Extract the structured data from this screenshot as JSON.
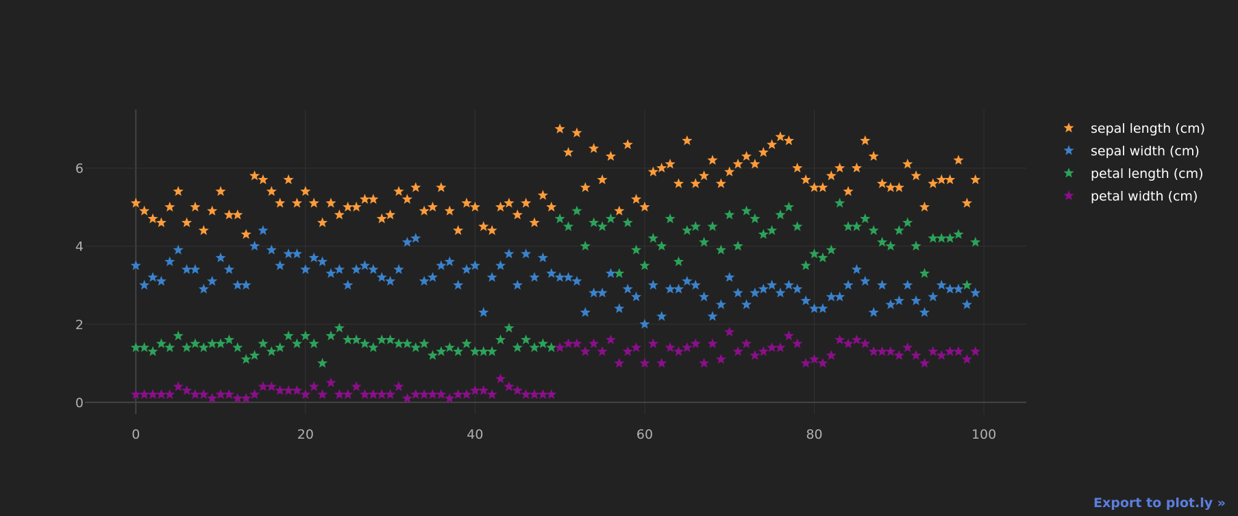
{
  "export_link": "Export to plot.ly »",
  "background": "#222222",
  "chart_data": {
    "type": "scatter",
    "marker": "star",
    "xlim": [
      -6,
      105
    ],
    "ylim": [
      -0.3,
      7.5
    ],
    "x_ticks": [
      0,
      20,
      40,
      60,
      80,
      100
    ],
    "y_ticks": [
      0,
      2,
      4,
      6
    ],
    "grid": true,
    "legend_position": "top-right",
    "series": [
      {
        "name": "sepal length (cm)",
        "color": "#ff9c3a",
        "values": [
          5.1,
          4.9,
          4.7,
          4.6,
          5.0,
          5.4,
          4.6,
          5.0,
          4.4,
          4.9,
          5.4,
          4.8,
          4.8,
          4.3,
          5.8,
          5.7,
          5.4,
          5.1,
          5.7,
          5.1,
          5.4,
          5.1,
          4.6,
          5.1,
          4.8,
          5.0,
          5.0,
          5.2,
          5.2,
          4.7,
          4.8,
          5.4,
          5.2,
          5.5,
          4.9,
          5.0,
          5.5,
          4.9,
          4.4,
          5.1,
          5.0,
          4.5,
          4.4,
          5.0,
          5.1,
          4.8,
          5.1,
          4.6,
          5.3,
          5.0,
          7.0,
          6.4,
          6.9,
          5.5,
          6.5,
          5.7,
          6.3,
          4.9,
          6.6,
          5.2,
          5.0,
          5.9,
          6.0,
          6.1,
          5.6,
          6.7,
          5.6,
          5.8,
          6.2,
          5.6,
          5.9,
          6.1,
          6.3,
          6.1,
          6.4,
          6.6,
          6.8,
          6.7,
          6.0,
          5.7,
          5.5,
          5.5,
          5.8,
          6.0,
          5.4,
          6.0,
          6.7,
          6.3,
          5.6,
          5.5,
          5.5,
          6.1,
          5.8,
          5.0,
          5.6,
          5.7,
          5.7,
          6.2,
          5.1,
          5.7
        ]
      },
      {
        "name": "sepal width (cm)",
        "color": "#3a82cc",
        "values": [
          3.5,
          3.0,
          3.2,
          3.1,
          3.6,
          3.9,
          3.4,
          3.4,
          2.9,
          3.1,
          3.7,
          3.4,
          3.0,
          3.0,
          4.0,
          4.4,
          3.9,
          3.5,
          3.8,
          3.8,
          3.4,
          3.7,
          3.6,
          3.3,
          3.4,
          3.0,
          3.4,
          3.5,
          3.4,
          3.2,
          3.1,
          3.4,
          4.1,
          4.2,
          3.1,
          3.2,
          3.5,
          3.6,
          3.0,
          3.4,
          3.5,
          2.3,
          3.2,
          3.5,
          3.8,
          3.0,
          3.8,
          3.2,
          3.7,
          3.3,
          3.2,
          3.2,
          3.1,
          2.3,
          2.8,
          2.8,
          3.3,
          2.4,
          2.9,
          2.7,
          2.0,
          3.0,
          2.2,
          2.9,
          2.9,
          3.1,
          3.0,
          2.7,
          2.2,
          2.5,
          3.2,
          2.8,
          2.5,
          2.8,
          2.9,
          3.0,
          2.8,
          3.0,
          2.9,
          2.6,
          2.4,
          2.4,
          2.7,
          2.7,
          3.0,
          3.4,
          3.1,
          2.3,
          3.0,
          2.5,
          2.6,
          3.0,
          2.6,
          2.3,
          2.7,
          3.0,
          2.9,
          2.9,
          2.5,
          2.8
        ]
      },
      {
        "name": "petal length (cm)",
        "color": "#2ca35a",
        "values": [
          1.4,
          1.4,
          1.3,
          1.5,
          1.4,
          1.7,
          1.4,
          1.5,
          1.4,
          1.5,
          1.5,
          1.6,
          1.4,
          1.1,
          1.2,
          1.5,
          1.3,
          1.4,
          1.7,
          1.5,
          1.7,
          1.5,
          1.0,
          1.7,
          1.9,
          1.6,
          1.6,
          1.5,
          1.4,
          1.6,
          1.6,
          1.5,
          1.5,
          1.4,
          1.5,
          1.2,
          1.3,
          1.4,
          1.3,
          1.5,
          1.3,
          1.3,
          1.3,
          1.6,
          1.9,
          1.4,
          1.6,
          1.4,
          1.5,
          1.4,
          4.7,
          4.5,
          4.9,
          4.0,
          4.6,
          4.5,
          4.7,
          3.3,
          4.6,
          3.9,
          3.5,
          4.2,
          4.0,
          4.7,
          3.6,
          4.4,
          4.5,
          4.1,
          4.5,
          3.9,
          4.8,
          4.0,
          4.9,
          4.7,
          4.3,
          4.4,
          4.8,
          5.0,
          4.5,
          3.5,
          3.8,
          3.7,
          3.9,
          5.1,
          4.5,
          4.5,
          4.7,
          4.4,
          4.1,
          4.0,
          4.4,
          4.6,
          4.0,
          3.3,
          4.2,
          4.2,
          4.2,
          4.3,
          3.0,
          4.1
        ]
      },
      {
        "name": "petal width (cm)",
        "color": "#8a0f8a",
        "values": [
          0.2,
          0.2,
          0.2,
          0.2,
          0.2,
          0.4,
          0.3,
          0.2,
          0.2,
          0.1,
          0.2,
          0.2,
          0.1,
          0.1,
          0.2,
          0.4,
          0.4,
          0.3,
          0.3,
          0.3,
          0.2,
          0.4,
          0.2,
          0.5,
          0.2,
          0.2,
          0.4,
          0.2,
          0.2,
          0.2,
          0.2,
          0.4,
          0.1,
          0.2,
          0.2,
          0.2,
          0.2,
          0.1,
          0.2,
          0.2,
          0.3,
          0.3,
          0.2,
          0.6,
          0.4,
          0.3,
          0.2,
          0.2,
          0.2,
          0.2,
          1.4,
          1.5,
          1.5,
          1.3,
          1.5,
          1.3,
          1.6,
          1.0,
          1.3,
          1.4,
          1.0,
          1.5,
          1.0,
          1.4,
          1.3,
          1.4,
          1.5,
          1.0,
          1.5,
          1.1,
          1.8,
          1.3,
          1.5,
          1.2,
          1.3,
          1.4,
          1.4,
          1.7,
          1.5,
          1.0,
          1.1,
          1.0,
          1.2,
          1.6,
          1.5,
          1.6,
          1.5,
          1.3,
          1.3,
          1.3,
          1.2,
          1.4,
          1.2,
          1.0,
          1.3,
          1.2,
          1.3,
          1.3,
          1.1,
          1.3
        ]
      }
    ]
  }
}
